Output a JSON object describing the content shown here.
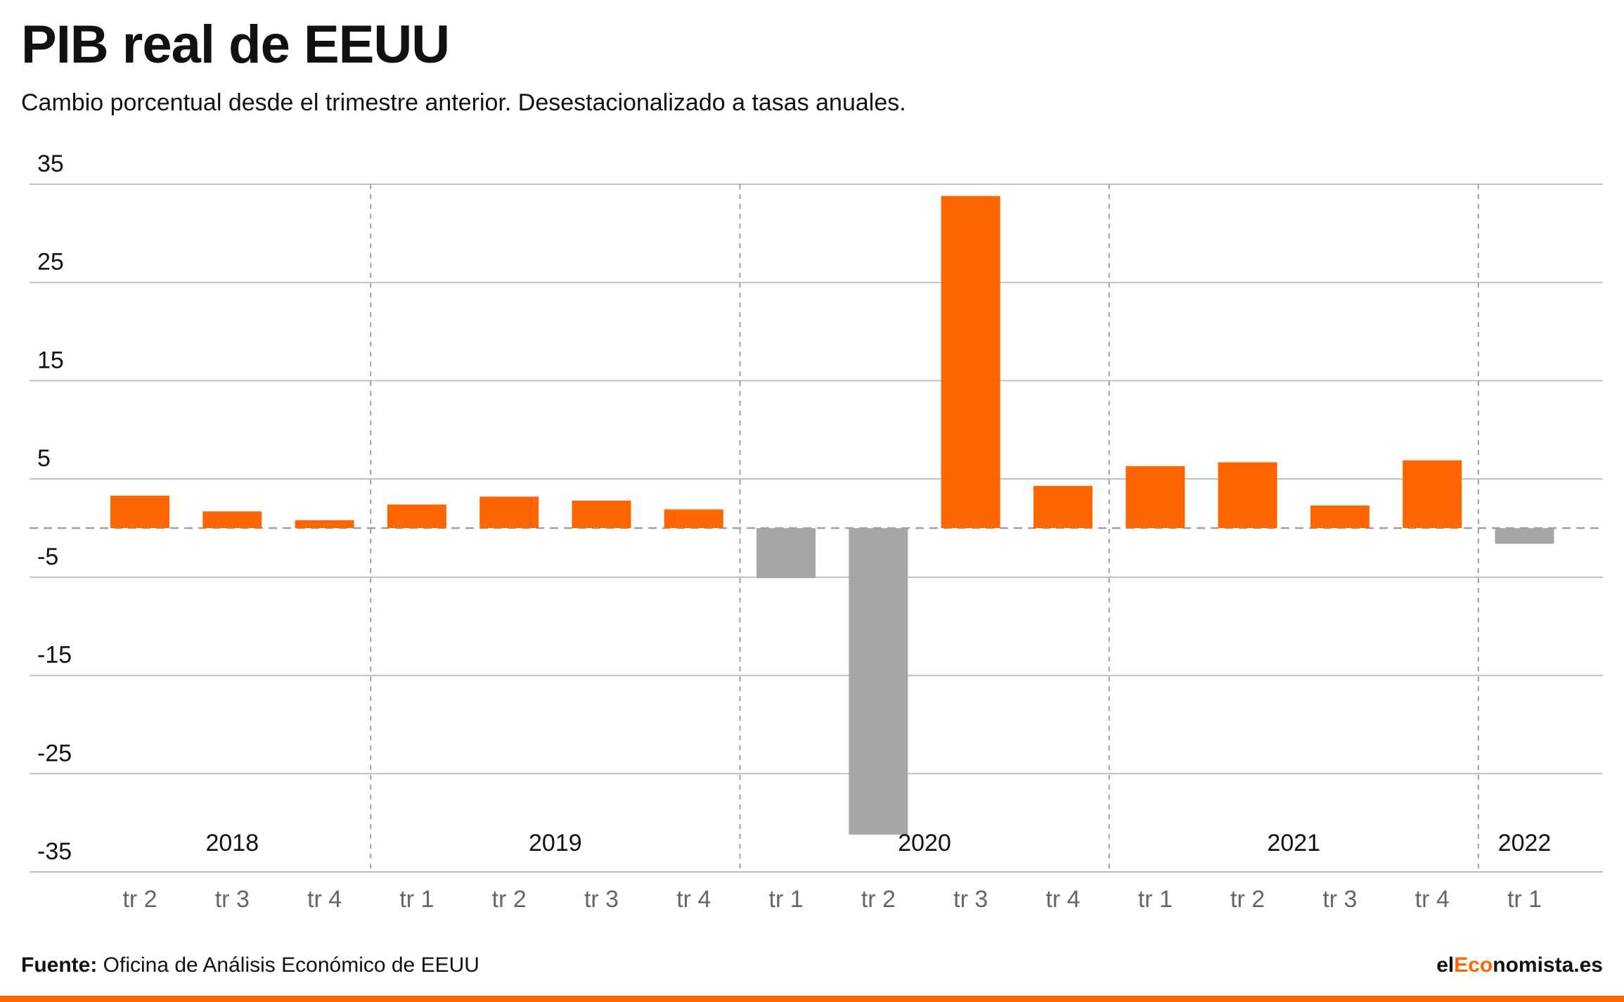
{
  "header": {
    "title": "PIB real de EEUU",
    "subtitle": "Cambio porcentual desde el trimestre anterior. Desestacionalizado a tasas anuales."
  },
  "footer": {
    "source_label": "Fuente:",
    "source_text": "Oficina de Análisis Económico de EEUU",
    "brand_prefix": "el",
    "brand_accent": "Eco",
    "brand_suffix": "nomista.es"
  },
  "colors": {
    "positive": "#ff6600",
    "negative": "#a6a6a6",
    "grid": "#bfbfbf",
    "divider": "#a0a0a0",
    "quarter_label": "#666666",
    "accent": "#ff6600"
  },
  "chart_data": {
    "type": "bar",
    "title": "PIB real de EEUU",
    "subtitle": "Cambio porcentual desde el trimestre anterior. Desestacionalizado a tasas anuales.",
    "ylim": [
      -35,
      35
    ],
    "yticks": [
      35,
      25,
      15,
      5,
      -5,
      -15,
      -25,
      -35
    ],
    "grid": true,
    "categories": [
      "tr 2",
      "tr 3",
      "tr 4",
      "tr 1",
      "tr 2",
      "tr 3",
      "tr 4",
      "tr 1",
      "tr 2",
      "tr 3",
      "tr 4",
      "tr 1",
      "tr 2",
      "tr 3",
      "tr 4",
      "tr 1"
    ],
    "values": [
      3.3,
      1.7,
      0.8,
      2.4,
      3.2,
      2.8,
      1.9,
      -5.1,
      -31.2,
      33.8,
      4.3,
      6.3,
      6.7,
      2.3,
      6.9,
      -1.6
    ],
    "years": [
      {
        "label": "2018",
        "start": 0,
        "end": 2
      },
      {
        "label": "2019",
        "start": 3,
        "end": 6
      },
      {
        "label": "2020",
        "start": 7,
        "end": 10
      },
      {
        "label": "2021",
        "start": 11,
        "end": 14
      },
      {
        "label": "2022",
        "start": 15,
        "end": 15
      }
    ]
  }
}
